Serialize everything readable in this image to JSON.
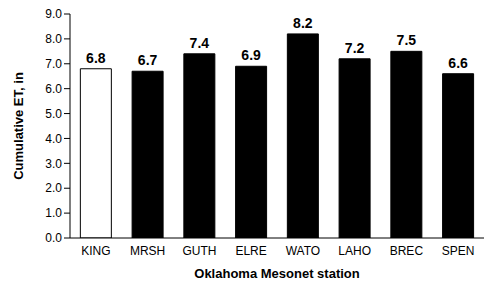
{
  "chart_data": {
    "type": "bar",
    "categories": [
      "KING",
      "MRSH",
      "GUTH",
      "ELRE",
      "WATO",
      "LAHO",
      "BREC",
      "SPEN"
    ],
    "values": [
      6.8,
      6.7,
      7.4,
      6.9,
      8.2,
      7.2,
      7.5,
      6.6
    ],
    "colors": [
      "#ffffff",
      "#000000",
      "#000000",
      "#000000",
      "#000000",
      "#000000",
      "#000000",
      "#000000"
    ],
    "xlabel": "Oklahoma Mesonet station",
    "ylabel": "Cumulative ET, in",
    "ylim": [
      0,
      9
    ],
    "yticks": [
      {
        "value": 0,
        "label": "0.0"
      },
      {
        "value": 1,
        "label": "1.0"
      },
      {
        "value": 2,
        "label": "2.0"
      },
      {
        "value": 3,
        "label": "3.0"
      },
      {
        "value": 4,
        "label": "4.0"
      },
      {
        "value": 5,
        "label": "5.0"
      },
      {
        "value": 6,
        "label": "6.0"
      },
      {
        "value": 7,
        "label": "7.0"
      },
      {
        "value": 8,
        "label": "8.0"
      },
      {
        "value": 9,
        "label": "9.0"
      }
    ],
    "grid": false,
    "data_labels": true
  }
}
